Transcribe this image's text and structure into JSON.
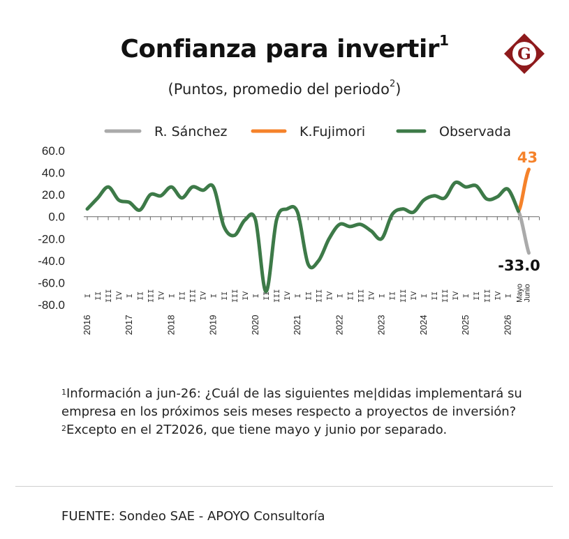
{
  "header": {
    "title": "Confianza para invertir",
    "title_sup": "1",
    "subtitle": "(Puntos, promedio del periodo",
    "subtitle_sup": "2",
    "subtitle_end": ")"
  },
  "logo": {
    "letter": "G",
    "color": "#8e1a1c",
    "icon": "gestion-logo-icon"
  },
  "notes": [
    {
      "sup": "1",
      "text": "Información a jun-26: ¿Cuál de las siguientes me|didas implementará su empresa en los próximos seis meses respecto a proyectos de inversión?"
    },
    {
      "sup": "2",
      "text": "Excepto en el 2T2026, que tiene mayo y junio por separado."
    }
  ],
  "source": "FUENTE: Sondeo SAE - APOYO Consultoría",
  "chart_data": {
    "type": "line",
    "title": "Confianza para invertir",
    "ylim": [
      -80,
      60
    ],
    "y_ticks": [
      "60.0",
      "40.0",
      "20.0",
      "0.0",
      "-20.0",
      "-40.0",
      "-60.0",
      "-80.0"
    ],
    "y_tick_values": [
      60,
      40,
      20,
      0,
      -20,
      -40,
      -60,
      -80
    ],
    "years": [
      "2016",
      "2017",
      "2018",
      "2019",
      "2020",
      "2021",
      "2022",
      "2023",
      "2024",
      "2025",
      "2026"
    ],
    "quarter_labels": [
      "I",
      "II",
      "III",
      "IV"
    ],
    "month_labels": [
      "Mayo",
      "Junio"
    ],
    "legend": [
      "R. Sánchez",
      "K.Fujimori",
      "Observada"
    ],
    "legend_position": "top",
    "grid": false,
    "colors": {
      "sanchez": "#aaaaaa",
      "fujimori": "#f5822a",
      "observada": "#3d7a48"
    },
    "series": [
      {
        "name": "Observada",
        "values": [
          7,
          17,
          27,
          15,
          13,
          6,
          20,
          19,
          27,
          17,
          27,
          24,
          27,
          -9,
          -17,
          -3,
          -3,
          -68,
          -3,
          7,
          4,
          -43,
          -40,
          -20,
          -7,
          -9,
          -7,
          -13,
          -20,
          2,
          7,
          4,
          15,
          19,
          17,
          31,
          27,
          28,
          16,
          18,
          25,
          5
        ]
      },
      {
        "name": "K.Fujimori",
        "from_value": 5,
        "value": 43,
        "label": "43"
      },
      {
        "name": "R. Sánchez",
        "from_value": 5,
        "value": -33,
        "label": "-33.0"
      }
    ]
  }
}
